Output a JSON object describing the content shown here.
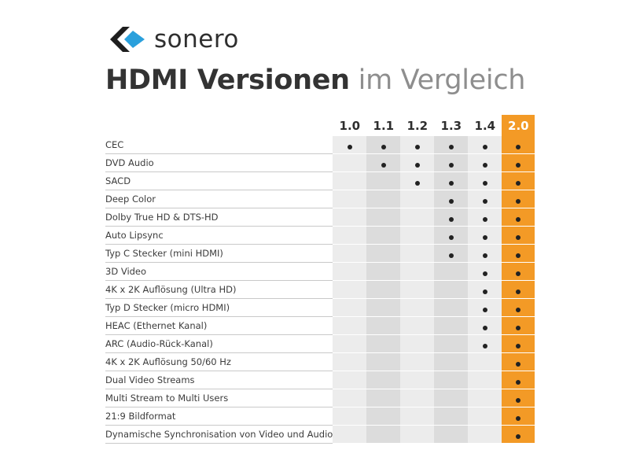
{
  "brand": {
    "name": "sonero",
    "logo_colors": {
      "dark": "#1e1e1e",
      "accent": "#2aa0dc"
    }
  },
  "headline": {
    "strong": "HDMI Versionen",
    "light": "im Vergleich"
  },
  "versions": [
    "1.0",
    "1.1",
    "1.2",
    "1.3",
    "1.4",
    "2.0"
  ],
  "highlight_version": "2.0",
  "colors": {
    "highlight": "#f39a26",
    "cell_light": "#ececec",
    "cell_dark": "#dcdcdc",
    "dot": "#222222"
  },
  "features": [
    {
      "label": "CEC",
      "support": [
        true,
        true,
        true,
        true,
        true,
        true
      ]
    },
    {
      "label": "DVD Audio",
      "support": [
        false,
        true,
        true,
        true,
        true,
        true
      ]
    },
    {
      "label": "SACD",
      "support": [
        false,
        false,
        true,
        true,
        true,
        true
      ]
    },
    {
      "label": "Deep Color",
      "support": [
        false,
        false,
        false,
        true,
        true,
        true
      ]
    },
    {
      "label": "Dolby True HD & DTS-HD",
      "support": [
        false,
        false,
        false,
        true,
        true,
        true
      ]
    },
    {
      "label": "Auto Lipsync",
      "support": [
        false,
        false,
        false,
        true,
        true,
        true
      ]
    },
    {
      "label": "Typ C Stecker (mini HDMI)",
      "support": [
        false,
        false,
        false,
        true,
        true,
        true
      ]
    },
    {
      "label": "3D Video",
      "support": [
        false,
        false,
        false,
        false,
        true,
        true
      ]
    },
    {
      "label": "4K x 2K Auflösung (Ultra HD)",
      "support": [
        false,
        false,
        false,
        false,
        true,
        true
      ]
    },
    {
      "label": "Typ D Stecker (micro HDMI)",
      "support": [
        false,
        false,
        false,
        false,
        true,
        true
      ]
    },
    {
      "label": "HEAC (Ethernet Kanal)",
      "support": [
        false,
        false,
        false,
        false,
        true,
        true
      ]
    },
    {
      "label": "ARC (Audio-Rück-Kanal)",
      "support": [
        false,
        false,
        false,
        false,
        true,
        true
      ]
    },
    {
      "label": "4K x 2K Auflösung 50/60 Hz",
      "support": [
        false,
        false,
        false,
        false,
        false,
        true
      ]
    },
    {
      "label": "Dual Video Streams",
      "support": [
        false,
        false,
        false,
        false,
        false,
        true
      ]
    },
    {
      "label": "Multi Stream to Multi Users",
      "support": [
        false,
        false,
        false,
        false,
        false,
        true
      ]
    },
    {
      "label": "21:9 Bildformat",
      "support": [
        false,
        false,
        false,
        false,
        false,
        true
      ]
    },
    {
      "label": "Dynamische Synchronisation von Video und Audio",
      "support": [
        false,
        false,
        false,
        false,
        false,
        true
      ]
    }
  ]
}
